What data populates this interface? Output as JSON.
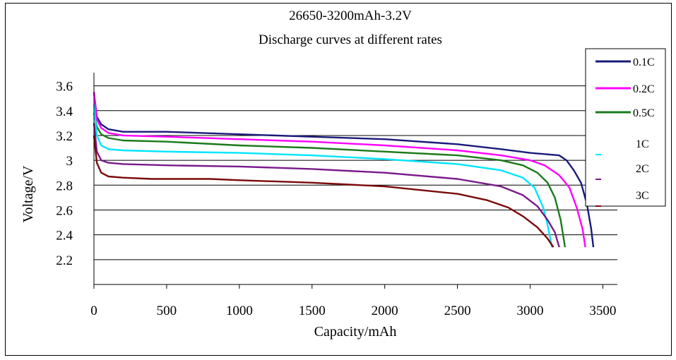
{
  "chart_data": {
    "type": "line",
    "title": "26650-3200mAh-3.2V",
    "subtitle": "Discharge curves at different rates",
    "xlabel": "Capacity/mAh",
    "ylabel": "Voltage/V",
    "xlim": [
      0,
      3600
    ],
    "ylim": [
      2.0,
      3.7
    ],
    "x_ticks": [
      0,
      500,
      1000,
      1500,
      2000,
      2500,
      3000,
      3500
    ],
    "y_ticks": [
      2.2,
      2.4,
      2.6,
      2.8,
      3,
      3.2,
      3.4,
      3.6
    ],
    "x_tick_labels": [
      "0",
      "500",
      "1000",
      "1500",
      "2000",
      "2500",
      "3000",
      "3500"
    ],
    "y_tick_labels": [
      "2.2",
      "2.4",
      "2.6",
      "2.8",
      "3",
      "3.2",
      "3.4",
      "3.6"
    ],
    "grid": "horizontal",
    "legend_position": "right",
    "series": [
      {
        "name": "0.1C",
        "color": "#1a1a7a",
        "points": [
          [
            0,
            3.55
          ],
          [
            20,
            3.35
          ],
          [
            50,
            3.29
          ],
          [
            100,
            3.25
          ],
          [
            200,
            3.23
          ],
          [
            500,
            3.23
          ],
          [
            1000,
            3.21
          ],
          [
            1500,
            3.19
          ],
          [
            2000,
            3.17
          ],
          [
            2500,
            3.13
          ],
          [
            2800,
            3.09
          ],
          [
            3000,
            3.06
          ],
          [
            3200,
            3.04
          ],
          [
            3250,
            3.0
          ],
          [
            3300,
            2.92
          ],
          [
            3350,
            2.82
          ],
          [
            3390,
            2.65
          ],
          [
            3420,
            2.45
          ],
          [
            3435,
            2.3
          ]
        ]
      },
      {
        "name": "0.2C",
        "color": "#ff00ff",
        "points": [
          [
            0,
            3.55
          ],
          [
            20,
            3.33
          ],
          [
            50,
            3.26
          ],
          [
            100,
            3.22
          ],
          [
            200,
            3.2
          ],
          [
            500,
            3.19
          ],
          [
            1000,
            3.17
          ],
          [
            1500,
            3.15
          ],
          [
            2000,
            3.12
          ],
          [
            2500,
            3.08
          ],
          [
            2800,
            3.04
          ],
          [
            3000,
            3.0
          ],
          [
            3100,
            2.96
          ],
          [
            3200,
            2.88
          ],
          [
            3270,
            2.78
          ],
          [
            3320,
            2.62
          ],
          [
            3360,
            2.45
          ],
          [
            3380,
            2.3
          ]
        ]
      },
      {
        "name": "0.5C",
        "color": "#1a7a1a",
        "points": [
          [
            0,
            3.38
          ],
          [
            20,
            3.27
          ],
          [
            50,
            3.21
          ],
          [
            100,
            3.18
          ],
          [
            200,
            3.16
          ],
          [
            500,
            3.15
          ],
          [
            1000,
            3.12
          ],
          [
            1500,
            3.1
          ],
          [
            2000,
            3.07
          ],
          [
            2500,
            3.04
          ],
          [
            2800,
            3.0
          ],
          [
            2950,
            2.96
          ],
          [
            3050,
            2.9
          ],
          [
            3120,
            2.82
          ],
          [
            3170,
            2.7
          ],
          [
            3210,
            2.52
          ],
          [
            3240,
            2.3
          ]
        ]
      },
      {
        "name": "1C",
        "color": "#00e5ff",
        "points": [
          [
            0,
            3.45
          ],
          [
            20,
            3.2
          ],
          [
            50,
            3.12
          ],
          [
            100,
            3.09
          ],
          [
            200,
            3.08
          ],
          [
            500,
            3.07
          ],
          [
            1000,
            3.06
          ],
          [
            1500,
            3.04
          ],
          [
            2000,
            3.01
          ],
          [
            2500,
            2.97
          ],
          [
            2800,
            2.92
          ],
          [
            2950,
            2.86
          ],
          [
            3030,
            2.78
          ],
          [
            3090,
            2.62
          ],
          [
            3120,
            2.48
          ],
          [
            3150,
            2.3
          ]
        ]
      },
      {
        "name": "2C",
        "color": "#7a1a8a",
        "points": [
          [
            0,
            3.3
          ],
          [
            20,
            3.07
          ],
          [
            50,
            3.0
          ],
          [
            100,
            2.98
          ],
          [
            200,
            2.97
          ],
          [
            500,
            2.96
          ],
          [
            1000,
            2.95
          ],
          [
            1500,
            2.93
          ],
          [
            2000,
            2.9
          ],
          [
            2500,
            2.85
          ],
          [
            2800,
            2.79
          ],
          [
            2950,
            2.72
          ],
          [
            3050,
            2.63
          ],
          [
            3120,
            2.52
          ],
          [
            3170,
            2.42
          ],
          [
            3200,
            2.3
          ]
        ]
      },
      {
        "name": "3C",
        "color": "#7a0a0a",
        "points": [
          [
            0,
            3.2
          ],
          [
            20,
            2.98
          ],
          [
            50,
            2.9
          ],
          [
            100,
            2.87
          ],
          [
            200,
            2.86
          ],
          [
            400,
            2.85
          ],
          [
            800,
            2.85
          ],
          [
            1000,
            2.84
          ],
          [
            1500,
            2.82
          ],
          [
            2000,
            2.79
          ],
          [
            2500,
            2.73
          ],
          [
            2700,
            2.68
          ],
          [
            2850,
            2.62
          ],
          [
            2950,
            2.55
          ],
          [
            3050,
            2.46
          ],
          [
            3120,
            2.37
          ],
          [
            3160,
            2.3
          ]
        ]
      }
    ]
  }
}
